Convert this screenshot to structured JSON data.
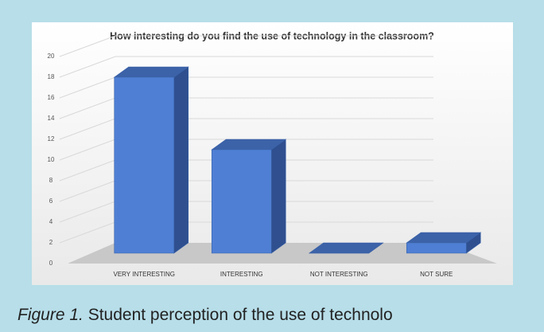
{
  "chart_data": {
    "type": "bar3d",
    "title": "How interesting do you find the use of technology in the classroom?",
    "categories": [
      "VERY INTERESTING",
      "INTERESTING",
      "NOT INTERESTING",
      "NOT SURE"
    ],
    "values": [
      17,
      10,
      0,
      1
    ],
    "color": "#4f7fd4",
    "ylim": [
      0,
      20
    ],
    "yticks": [
      0,
      2,
      4,
      6,
      8,
      10,
      12,
      14,
      16,
      18,
      20
    ],
    "grid": true
  },
  "caption": {
    "label": "Figure 1.",
    "text": " Student perception of the use of technolo"
  }
}
